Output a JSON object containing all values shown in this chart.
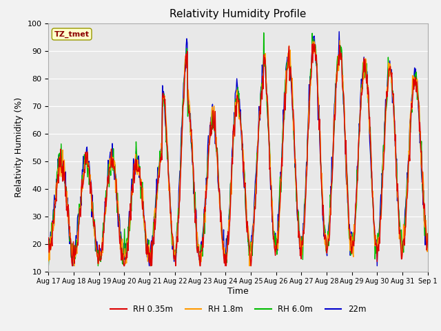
{
  "title": "Relativity Humidity Profile",
  "xlabel": "Time",
  "ylabel": "Relativity Humidity (%)",
  "ylim": [
    10,
    100
  ],
  "background_color": "#f2f2f2",
  "plot_bg_color": "#e8e8e8",
  "annotation_text": "TZ_tmet",
  "annotation_bg": "#ffffcc",
  "annotation_border": "#999900",
  "annotation_text_color": "#8b0000",
  "legend_labels": [
    "RH 0.35m",
    "RH 1.8m",
    "RH 6.0m",
    "22m"
  ],
  "line_colors": [
    "#dd0000",
    "#ff9900",
    "#00bb00",
    "#0000cc"
  ],
  "x_tick_labels": [
    "Aug 17",
    "Aug 18",
    "Aug 19",
    "Aug 20",
    "Aug 21",
    "Aug 22",
    "Aug 23",
    "Aug 24",
    "Aug 25",
    "Aug 26",
    "Aug 27",
    "Aug 28",
    "Aug 29",
    "Aug 30",
    "Aug 31",
    "Sep 1"
  ],
  "yticks": [
    10,
    20,
    30,
    40,
    50,
    60,
    70,
    80,
    90,
    100
  ],
  "n_points": 720,
  "seed": 7
}
